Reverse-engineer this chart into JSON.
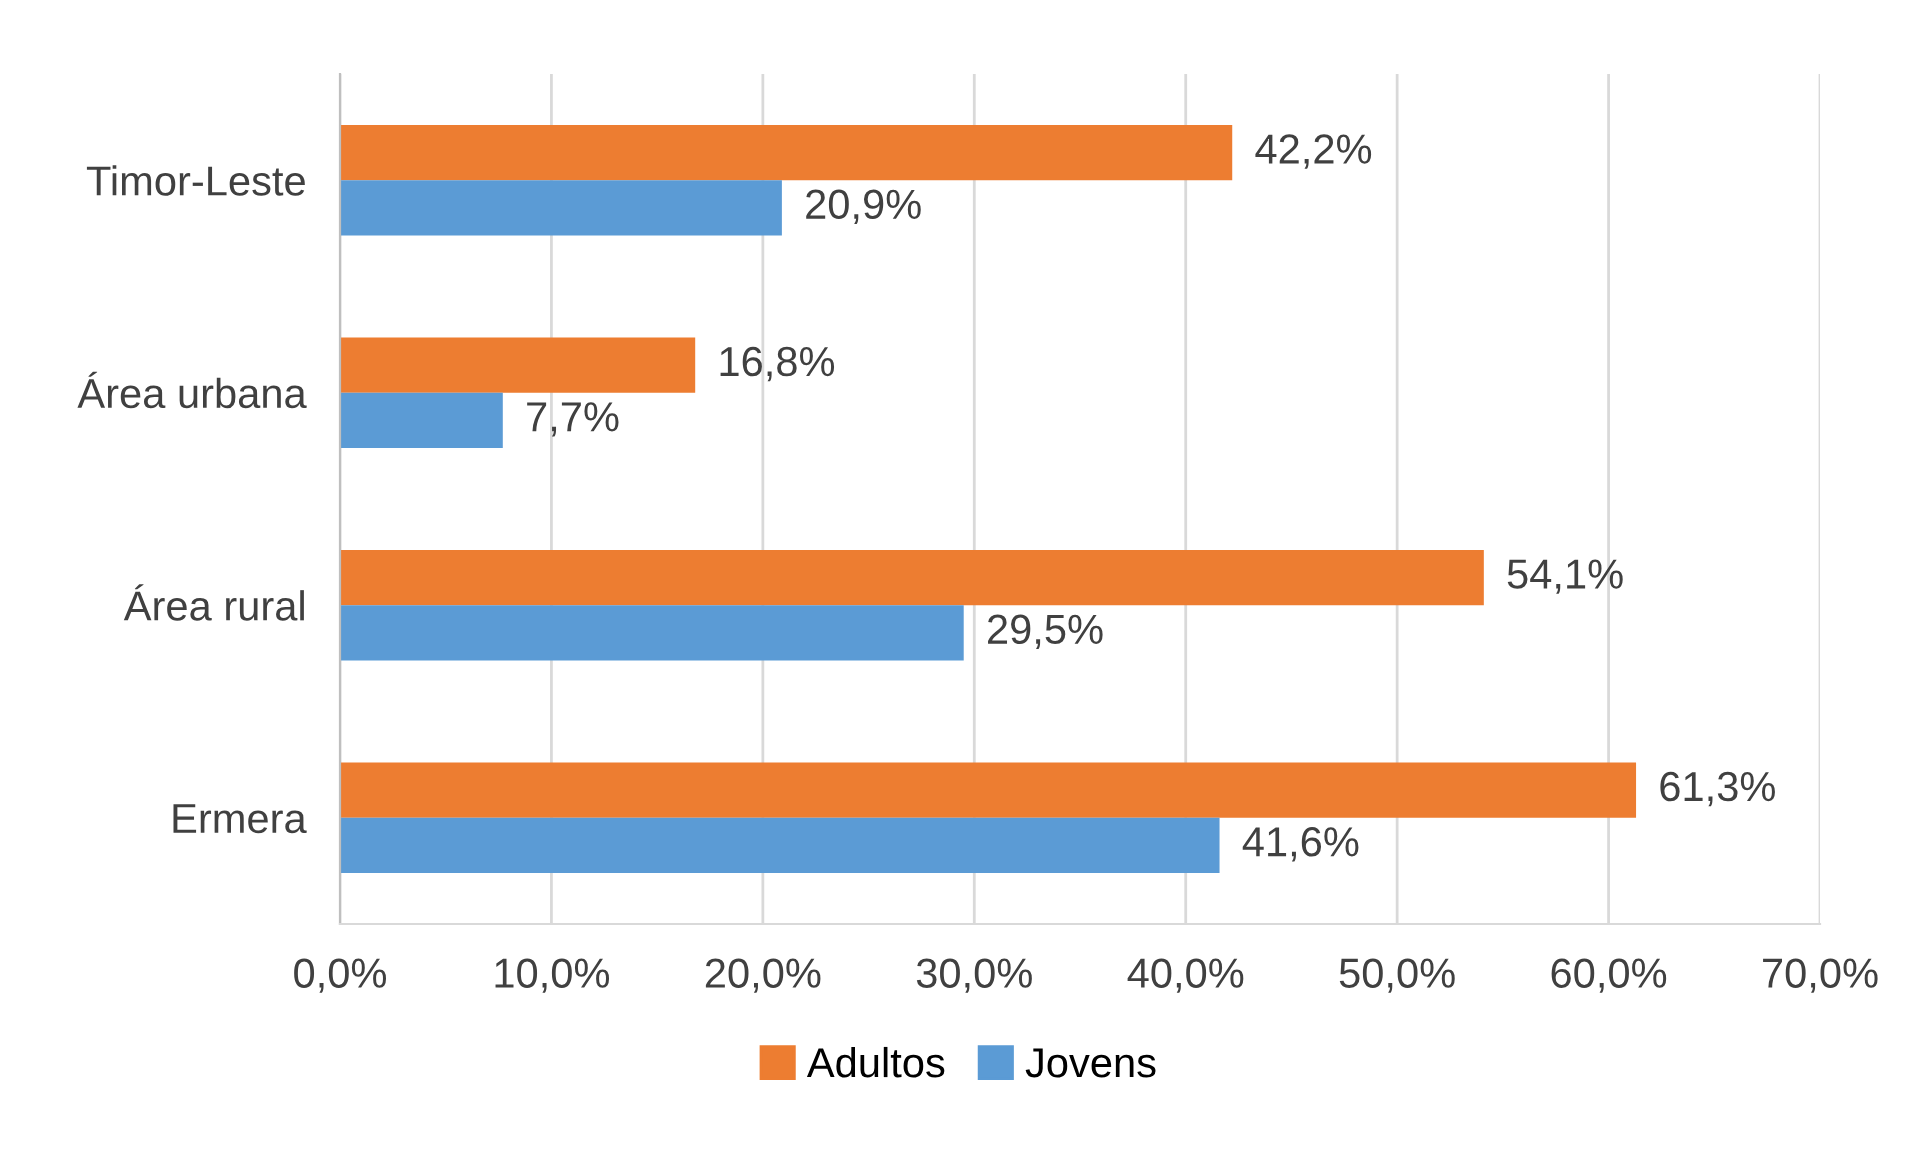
{
  "chart_data": {
    "type": "bar",
    "orientation": "horizontal",
    "categories": [
      "Timor-Leste",
      "Área urbana",
      "Área rural",
      "Ermera"
    ],
    "series": [
      {
        "name": "Adultos",
        "color": "#ed7d31",
        "values": [
          42.2,
          16.8,
          54.1,
          61.3
        ],
        "value_labels": [
          "42,2%",
          "16,8%",
          "54,1%",
          "61,3%"
        ]
      },
      {
        "name": "Jovens",
        "color": "#5b9bd5",
        "values": [
          20.9,
          7.7,
          29.5,
          41.6
        ],
        "value_labels": [
          "20,9%",
          "7,7%",
          "29,5%",
          "41,6%"
        ]
      }
    ],
    "xlim": [
      0,
      70
    ],
    "xticks": [
      {
        "value": 0,
        "label": "0,0%"
      },
      {
        "value": 10,
        "label": "10,0%"
      },
      {
        "value": 20,
        "label": "20,0%"
      },
      {
        "value": 30,
        "label": "30,0%"
      },
      {
        "value": 40,
        "label": "40,0%"
      },
      {
        "value": 50,
        "label": "50,0%"
      },
      {
        "value": 60,
        "label": "60,0%"
      },
      {
        "value": 70,
        "label": "70,0%"
      }
    ],
    "grid": "x",
    "legend": "bottom"
  }
}
